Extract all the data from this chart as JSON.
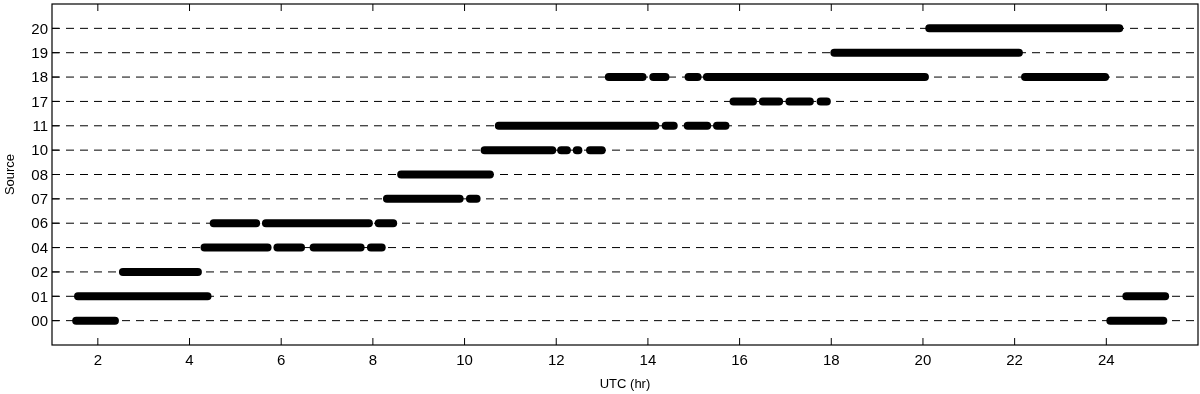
{
  "chart_data": {
    "type": "bar",
    "orientation": "horizontal",
    "xlabel": "UTC (hr)",
    "ylabel": "Source",
    "categories": [
      "20",
      "19",
      "18",
      "17",
      "11",
      "10",
      "08",
      "07",
      "06",
      "04",
      "02",
      "01",
      "00"
    ],
    "xlim": [
      1,
      26
    ],
    "xticks": [
      2,
      4,
      6,
      8,
      10,
      12,
      14,
      16,
      18,
      20,
      22,
      24
    ],
    "grid": "y",
    "series": [
      {
        "color": "#000000",
        "base": [
          20.05,
          17.98,
          13.06,
          15.78,
          10.66,
          10.35,
          8.53,
          8.22,
          4.44,
          4.24,
          2.46,
          1.48,
          1.44
        ],
        "values": [
          4.32,
          4.2,
          0.91,
          0.6,
          3.59,
          1.65,
          2.11,
          1.76,
          1.1,
          1.55,
          1.81,
          3.0,
          1.02
        ]
      },
      {
        "color": "#000000",
        "base": [
          null,
          null,
          14.03,
          16.42,
          14.3,
          12.02,
          null,
          10.03,
          5.58,
          5.83,
          null,
          24.35,
          24.0
        ],
        "values": [
          null,
          null,
          0.44,
          0.53,
          0.35,
          0.3,
          null,
          0.32,
          2.42,
          0.69,
          null,
          1.02,
          1.33
        ]
      },
      {
        "color": "#000000",
        "base": [
          null,
          null,
          14.8,
          17.0,
          14.78,
          12.36,
          null,
          null,
          8.04,
          6.62,
          null,
          null,
          null
        ],
        "values": [
          null,
          null,
          0.37,
          0.62,
          0.6,
          0.21,
          null,
          null,
          0.49,
          1.2,
          null,
          null,
          null
        ]
      },
      {
        "color": "#000000",
        "base": [
          null,
          null,
          15.2,
          17.68,
          15.42,
          12.65,
          null,
          null,
          null,
          7.87,
          null,
          null,
          null
        ],
        "values": [
          null,
          null,
          4.93,
          0.31,
          0.36,
          0.43,
          null,
          null,
          null,
          0.41,
          null,
          null,
          null
        ]
      },
      {
        "color": "#000000",
        "base": [
          null,
          null,
          22.14,
          null,
          null,
          null,
          null,
          null,
          null,
          null,
          null,
          null,
          null
        ],
        "values": [
          null,
          null,
          1.92,
          null,
          null,
          null,
          null,
          null,
          null,
          null,
          null,
          null,
          null
        ]
      }
    ]
  }
}
